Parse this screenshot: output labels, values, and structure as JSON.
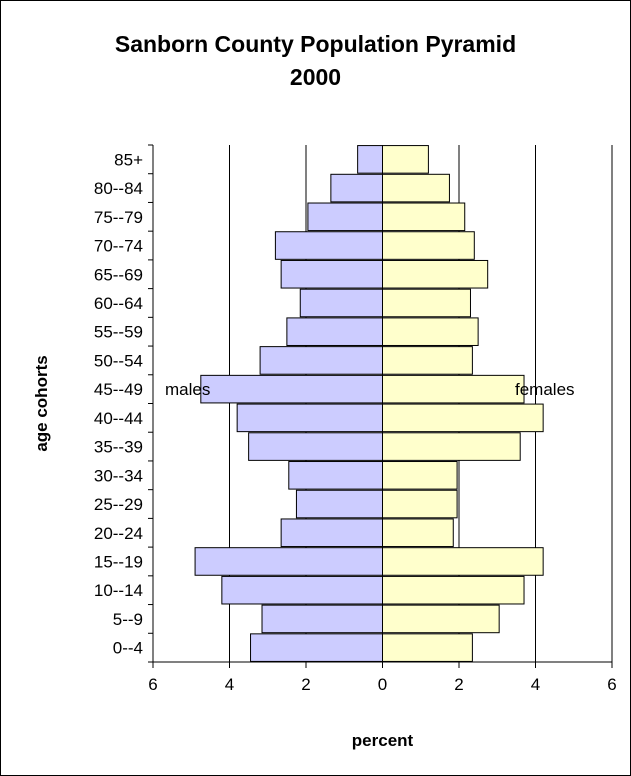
{
  "chart_data": {
    "type": "bar",
    "orientation": "horizontal-pyramid",
    "title": [
      "Sanborn County Population Pyramid",
      "2000"
    ],
    "xlabel": "percent",
    "ylabel": "age cohorts",
    "xlim": [
      -6,
      6
    ],
    "x_tick_labels": [
      "6",
      "4",
      "2",
      "0",
      "2",
      "4",
      "6"
    ],
    "categories": [
      "0--4",
      "5--9",
      "10--14",
      "15--19",
      "20--24",
      "25--29",
      "30--34",
      "35--39",
      "40--44",
      "45--49",
      "50--54",
      "55--59",
      "60--64",
      "65--69",
      "70--74",
      "75--79",
      "80--84",
      "85+"
    ],
    "series": [
      {
        "name": "males",
        "side": "left",
        "color": "#ccccff",
        "values": [
          3.45,
          3.15,
          4.2,
          4.9,
          2.65,
          2.25,
          2.45,
          3.5,
          3.8,
          4.75,
          3.2,
          2.5,
          2.15,
          2.65,
          2.8,
          1.95,
          1.35,
          0.65
        ]
      },
      {
        "name": "females",
        "side": "right",
        "color": "#ffffcc",
        "values": [
          2.35,
          3.05,
          3.7,
          4.2,
          1.85,
          1.95,
          1.95,
          3.6,
          4.2,
          3.7,
          2.35,
          2.5,
          2.3,
          2.75,
          2.4,
          2.15,
          1.75,
          1.2
        ]
      }
    ],
    "annotations": [
      "males",
      "females"
    ],
    "grid": true
  }
}
